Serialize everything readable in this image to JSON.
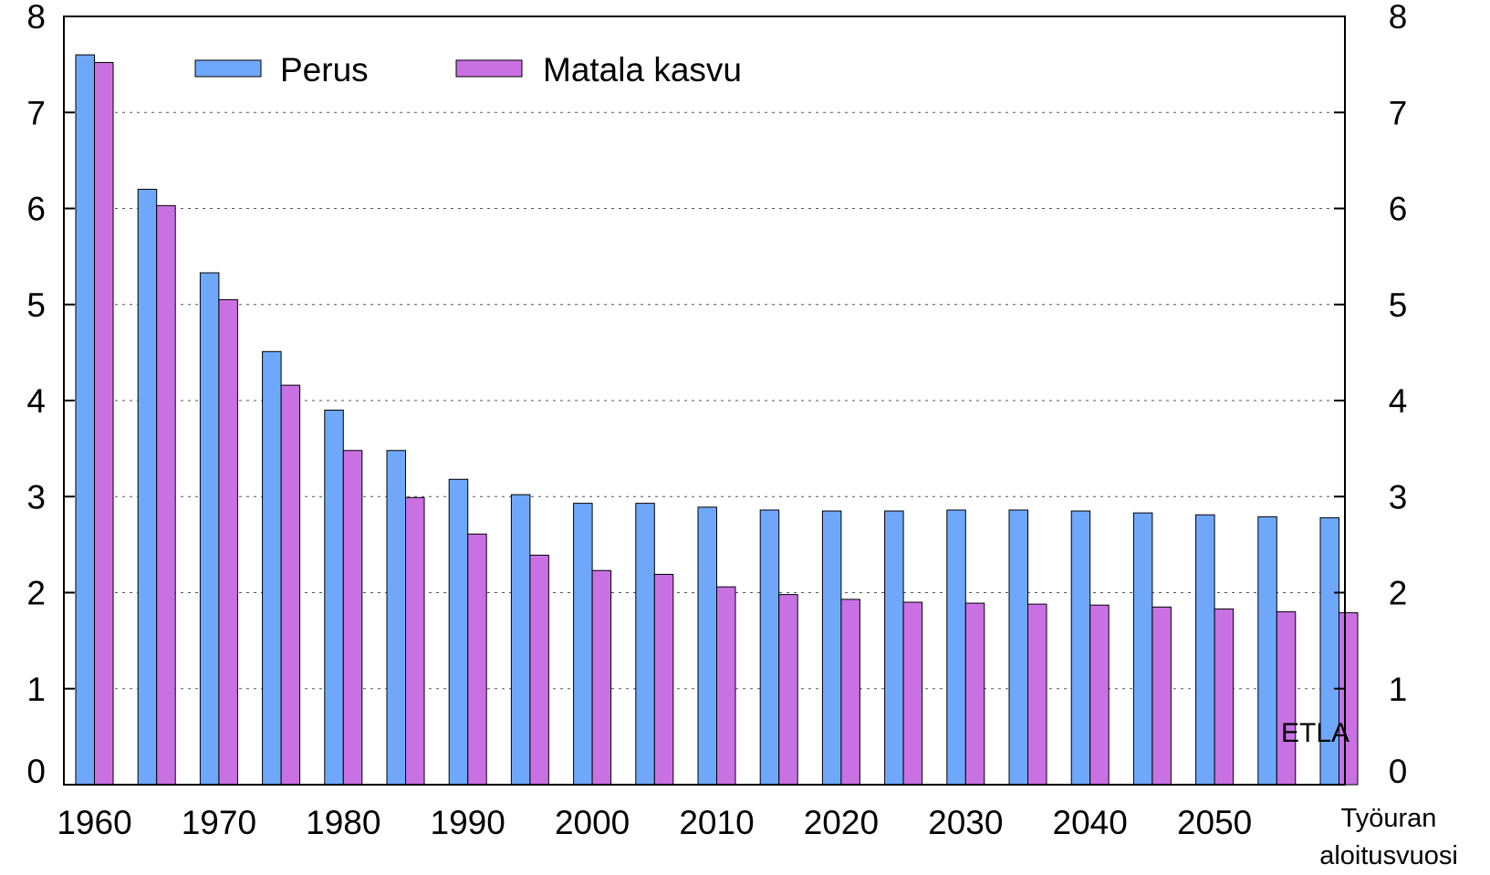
{
  "chart_data": {
    "type": "bar",
    "title": "",
    "categories": [
      "1960",
      "1965",
      "1970",
      "1975",
      "1980",
      "1985",
      "1990",
      "1995",
      "2000",
      "2005",
      "2010",
      "2015",
      "2020",
      "2025",
      "2030",
      "2035",
      "2040",
      "2045",
      "2050",
      "2055",
      "2060"
    ],
    "x_tick_labels": [
      "1960",
      "1970",
      "1980",
      "1990",
      "2000",
      "2010",
      "2020",
      "2030",
      "2040",
      "2050"
    ],
    "xlabel": [
      "Työuran",
      "aloitusvuosi"
    ],
    "ylabel": "",
    "ylim": [
      0,
      8
    ],
    "y_ticks": [
      "0",
      "1",
      "2",
      "3",
      "4",
      "5",
      "6",
      "7",
      "8"
    ],
    "series": [
      {
        "name": "Perus",
        "color": "#6fa8fb",
        "values": [
          7.6,
          6.2,
          5.33,
          4.51,
          3.9,
          3.48,
          3.18,
          3.02,
          2.93,
          2.93,
          2.89,
          2.86,
          2.85,
          2.85,
          2.86,
          2.86,
          2.85,
          2.83,
          2.81,
          2.79,
          2.78
        ]
      },
      {
        "name": "Matala kasvu",
        "color": "#c971e3",
        "values": [
          7.52,
          6.03,
          5.05,
          4.16,
          3.48,
          2.99,
          2.61,
          2.39,
          2.23,
          2.19,
          2.06,
          1.98,
          1.93,
          1.9,
          1.89,
          1.88,
          1.87,
          1.85,
          1.83,
          1.8,
          1.79
        ]
      }
    ],
    "grid": true,
    "grid_style": "dotted",
    "legend_position": "top-left",
    "secondary_y_axis": true,
    "note": "ETLA"
  }
}
